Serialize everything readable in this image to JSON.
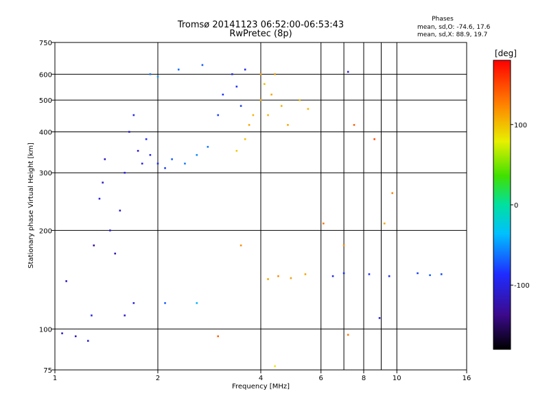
{
  "chart_data": {
    "type": "scatter",
    "title": "Tromsø 20141123 06:52:00-06:53:43",
    "subtitle": "RwPretec (8p)",
    "xlabel": "Frequency [MHz]",
    "ylabel": "Stationary phase Virtual Height [km]",
    "x_scale": "log",
    "y_scale": "log",
    "xlim": [
      1,
      16
    ],
    "ylim": [
      75,
      750
    ],
    "x_ticks": [
      1,
      2,
      4,
      6,
      8,
      10,
      16
    ],
    "x_grid": [
      2,
      4,
      6,
      7,
      8,
      9,
      10
    ],
    "y_ticks": [
      75,
      100,
      200,
      300,
      400,
      500,
      600,
      750
    ],
    "y_grid": [
      100,
      200,
      300,
      400,
      500,
      600
    ],
    "grid": true,
    "stats": {
      "header": "Phases",
      "o_line": "mean, sd,O: -74.6, 17.6",
      "x_line": "mean, sd,X:  88.9, 19.7"
    },
    "colorbar": {
      "unit": "[deg]",
      "range": [
        -180,
        180
      ],
      "ticks": [
        100,
        0,
        -100
      ],
      "colormap": "rainbow"
    },
    "series": [
      {
        "mode": "O",
        "points": [
          [
            1.05,
            97,
            -110
          ],
          [
            1.08,
            140,
            -115
          ],
          [
            1.15,
            95,
            -120
          ],
          [
            1.25,
            92,
            -105
          ],
          [
            1.28,
            110,
            -95
          ],
          [
            1.3,
            180,
            -130
          ],
          [
            1.35,
            250,
            -100
          ],
          [
            1.38,
            280,
            -110
          ],
          [
            1.4,
            330,
            -115
          ],
          [
            1.45,
            200,
            -105
          ],
          [
            1.5,
            170,
            -120
          ],
          [
            1.55,
            230,
            -110
          ],
          [
            1.6,
            300,
            -100
          ],
          [
            1.65,
            400,
            -105
          ],
          [
            1.7,
            450,
            -95
          ],
          [
            1.75,
            350,
            -110
          ],
          [
            1.8,
            320,
            -100
          ],
          [
            1.85,
            380,
            -90
          ],
          [
            1.9,
            340,
            -95
          ],
          [
            2.0,
            320,
            -90
          ],
          [
            2.1,
            310,
            -80
          ],
          [
            2.2,
            330,
            -70
          ],
          [
            2.4,
            320,
            -60
          ],
          [
            2.6,
            340,
            -55
          ],
          [
            2.8,
            360,
            -60
          ],
          [
            3.0,
            450,
            -80
          ],
          [
            3.1,
            520,
            -85
          ],
          [
            3.3,
            600,
            -90
          ],
          [
            3.4,
            550,
            -85
          ],
          [
            3.5,
            480,
            -80
          ],
          [
            3.6,
            620,
            -95
          ],
          [
            1.9,
            600,
            -60
          ],
          [
            2.0,
            590,
            -50
          ],
          [
            2.3,
            620,
            -65
          ],
          [
            2.7,
            640,
            -70
          ],
          [
            1.6,
            110,
            -110
          ],
          [
            1.7,
            120,
            -100
          ],
          [
            2.1,
            120,
            -70
          ],
          [
            2.6,
            120,
            -40
          ],
          [
            6.5,
            145,
            -95
          ],
          [
            7.0,
            148,
            -90
          ],
          [
            8.3,
            147,
            -85
          ],
          [
            9.5,
            145,
            -90
          ],
          [
            11.5,
            148,
            -80
          ],
          [
            12.5,
            146,
            -70
          ],
          [
            13.5,
            147,
            -75
          ],
          [
            7.2,
            610,
            -110
          ],
          [
            8.9,
            108,
            -105
          ]
        ]
      },
      {
        "mode": "X",
        "points": [
          [
            3.4,
            350,
            95
          ],
          [
            3.6,
            380,
            100
          ],
          [
            3.7,
            420,
            110
          ],
          [
            3.8,
            450,
            105
          ],
          [
            4.0,
            500,
            110
          ],
          [
            4.0,
            600,
            115
          ],
          [
            4.1,
            560,
            100
          ],
          [
            4.2,
            450,
            105
          ],
          [
            4.3,
            520,
            110
          ],
          [
            4.4,
            600,
            115
          ],
          [
            4.6,
            480,
            105
          ],
          [
            4.8,
            420,
            110
          ],
          [
            5.2,
            500,
            100
          ],
          [
            5.5,
            470,
            105
          ],
          [
            3.5,
            180,
            120
          ],
          [
            4.2,
            142,
            110
          ],
          [
            4.5,
            145,
            120
          ],
          [
            4.9,
            143,
            115
          ],
          [
            5.4,
            147,
            110
          ],
          [
            6.1,
            210,
            130
          ],
          [
            7.0,
            180,
            120
          ],
          [
            7.5,
            420,
            140
          ],
          [
            8.6,
            380,
            150
          ],
          [
            9.7,
            260,
            125
          ],
          [
            3.0,
            95,
            140
          ],
          [
            4.4,
            77,
            80
          ],
          [
            7.2,
            96,
            130
          ],
          [
            9.2,
            210,
            110
          ]
        ]
      }
    ]
  }
}
